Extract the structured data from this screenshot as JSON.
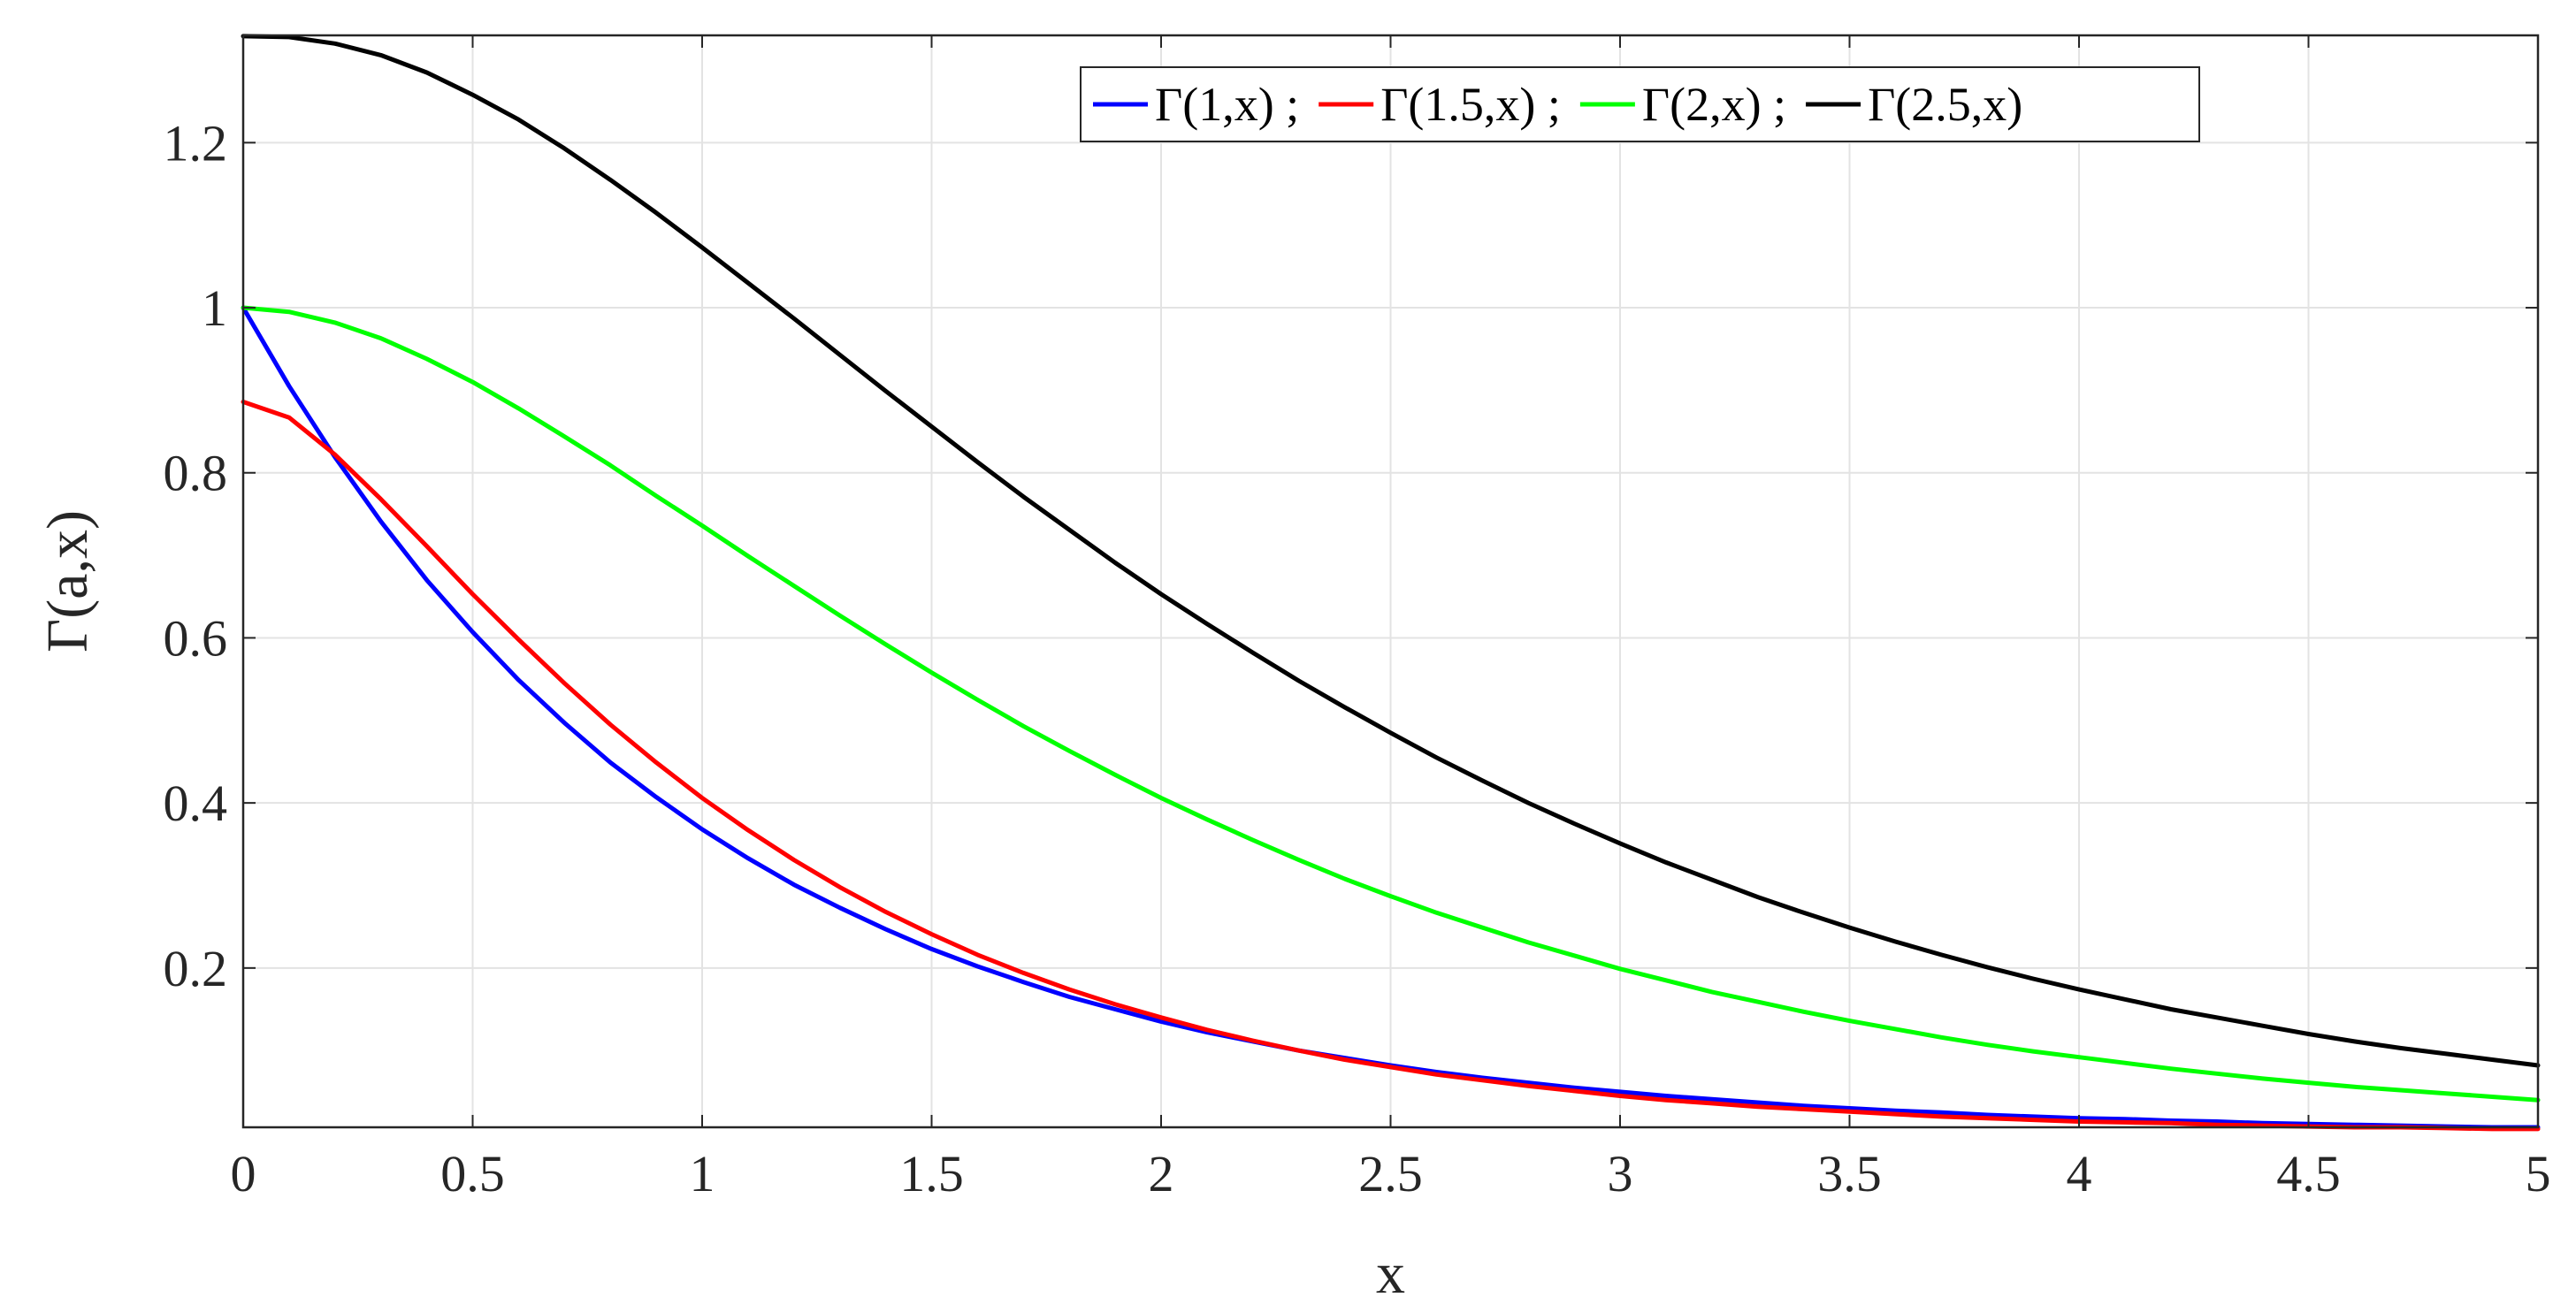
{
  "chart_data": {
    "type": "line",
    "title": "",
    "xlabel": "x",
    "ylabel": "Γ(a,x)",
    "xlim": [
      0,
      5
    ],
    "ylim": [
      0.007,
      1.33
    ],
    "xticks": [
      0,
      0.5,
      1,
      1.5,
      2,
      2.5,
      3,
      3.5,
      4,
      4.5,
      5
    ],
    "xtick_labels": [
      "0",
      "0.5",
      "1",
      "1.5",
      "2",
      "2.5",
      "3",
      "3.5",
      "4",
      "4.5",
      "5"
    ],
    "yticks": [
      0.2,
      0.4,
      0.6,
      0.8,
      1,
      1.2
    ],
    "ytick_labels": [
      "0.2",
      "0.4",
      "0.6",
      "0.8",
      "1",
      "1.2"
    ],
    "grid": true,
    "legend_position": "top-right",
    "legend_separator": " ;",
    "x": [
      0,
      0.1,
      0.2,
      0.3,
      0.4,
      0.5,
      0.6,
      0.7,
      0.8,
      0.9,
      1,
      1.1,
      1.2,
      1.3,
      1.4,
      1.5,
      1.6,
      1.7,
      1.8,
      1.9,
      2,
      2.1,
      2.2,
      2.3,
      2.4,
      2.5,
      2.6,
      2.7,
      2.8,
      2.9,
      3,
      3.1,
      3.2,
      3.3,
      3.4,
      3.5,
      3.6,
      3.7,
      3.8,
      3.9,
      4,
      4.1,
      4.2,
      4.3,
      4.4,
      4.5,
      4.6,
      4.7,
      4.8,
      4.9,
      5
    ],
    "series": [
      {
        "name": "Γ(1,x)",
        "color": "#0000ff",
        "values": [
          1,
          0.905,
          0.819,
          0.741,
          0.67,
          0.607,
          0.549,
          0.497,
          0.449,
          0.407,
          0.368,
          0.333,
          0.301,
          0.273,
          0.247,
          0.223,
          0.202,
          0.183,
          0.165,
          0.15,
          0.135,
          0.122,
          0.111,
          0.1,
          0.091,
          0.082,
          0.074,
          0.067,
          0.061,
          0.055,
          0.05,
          0.045,
          0.041,
          0.037,
          0.033,
          0.03,
          0.027,
          0.025,
          0.022,
          0.02,
          0.018,
          0.017,
          0.015,
          0.014,
          0.012,
          0.011,
          0.01,
          0.009,
          0.008,
          0.007,
          0.007
        ]
      },
      {
        "name": "Γ(1.5,x)",
        "color": "#ff0000",
        "values": [
          0.886,
          0.867,
          0.822,
          0.768,
          0.711,
          0.653,
          0.598,
          0.545,
          0.495,
          0.449,
          0.406,
          0.367,
          0.331,
          0.298,
          0.268,
          0.241,
          0.216,
          0.194,
          0.174,
          0.156,
          0.14,
          0.125,
          0.112,
          0.1,
          0.089,
          0.08,
          0.071,
          0.064,
          0.057,
          0.051,
          0.045,
          0.04,
          0.036,
          0.032,
          0.029,
          0.026,
          0.023,
          0.02,
          0.018,
          0.016,
          0.014,
          0.013,
          0.012,
          0.01,
          0.009,
          0.008,
          0.007,
          0.007,
          0.006,
          0.005,
          0.005
        ]
      },
      {
        "name": "Γ(2,x)",
        "color": "#00ff00",
        "values": [
          1,
          0.995,
          0.982,
          0.963,
          0.938,
          0.91,
          0.878,
          0.844,
          0.809,
          0.772,
          0.736,
          0.699,
          0.663,
          0.627,
          0.592,
          0.558,
          0.525,
          0.493,
          0.463,
          0.434,
          0.406,
          0.38,
          0.355,
          0.331,
          0.308,
          0.287,
          0.267,
          0.249,
          0.231,
          0.215,
          0.199,
          0.185,
          0.171,
          0.159,
          0.147,
          0.136,
          0.126,
          0.116,
          0.107,
          0.099,
          0.092,
          0.085,
          0.078,
          0.072,
          0.066,
          0.061,
          0.056,
          0.052,
          0.048,
          0.044,
          0.04
        ]
      },
      {
        "name": "Γ(2.5,x)",
        "color": "#000000",
        "values": [
          1.329,
          1.328,
          1.32,
          1.306,
          1.285,
          1.258,
          1.228,
          1.193,
          1.155,
          1.115,
          1.073,
          1.03,
          0.987,
          0.943,
          0.899,
          0.856,
          0.813,
          0.771,
          0.731,
          0.691,
          0.653,
          0.617,
          0.582,
          0.548,
          0.516,
          0.485,
          0.455,
          0.427,
          0.4,
          0.375,
          0.351,
          0.328,
          0.307,
          0.286,
          0.267,
          0.249,
          0.232,
          0.216,
          0.201,
          0.187,
          0.174,
          0.162,
          0.15,
          0.14,
          0.13,
          0.12,
          0.111,
          0.103,
          0.096,
          0.089,
          0.082
        ]
      }
    ]
  }
}
